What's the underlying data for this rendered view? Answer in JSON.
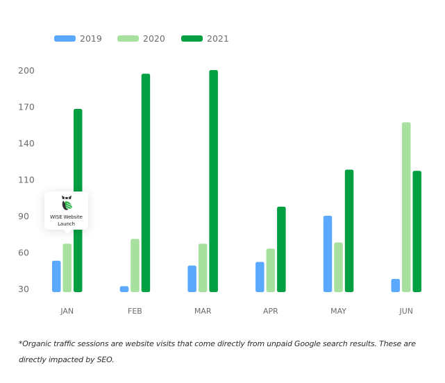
{
  "chart_data": {
    "type": "bar",
    "title": "",
    "xlabel": "",
    "ylabel": "",
    "categories": [
      "JAN",
      "FEB",
      "MAR",
      "APR",
      "MAY",
      "JUN"
    ],
    "series": [
      {
        "name": "2019",
        "color": "#5aa9ff",
        "values": [
          53,
          32,
          49,
          52,
          90,
          38
        ]
      },
      {
        "name": "2020",
        "color": "#a8e0a0",
        "values": [
          67,
          71,
          67,
          63,
          68,
          157
        ]
      },
      {
        "name": "2021",
        "color": "#009f42",
        "values": [
          168,
          197,
          200,
          95,
          118,
          117
        ]
      }
    ],
    "y_ticks": [
      30,
      60,
      90,
      110,
      140,
      170,
      200
    ],
    "ylim": [
      30,
      200
    ],
    "grid": false,
    "legend_position": "top-left",
    "annotation": {
      "category": "JAN",
      "series": "2020",
      "icon": "owl-logo-icon",
      "text_line1": "WISE Website",
      "text_line2": "Launch"
    }
  },
  "footnote": {
    "line1": "*Organic traffic sessions are website visits that come directly from unpaid Google search results. These are",
    "line2": "directly impacted by SEO."
  }
}
